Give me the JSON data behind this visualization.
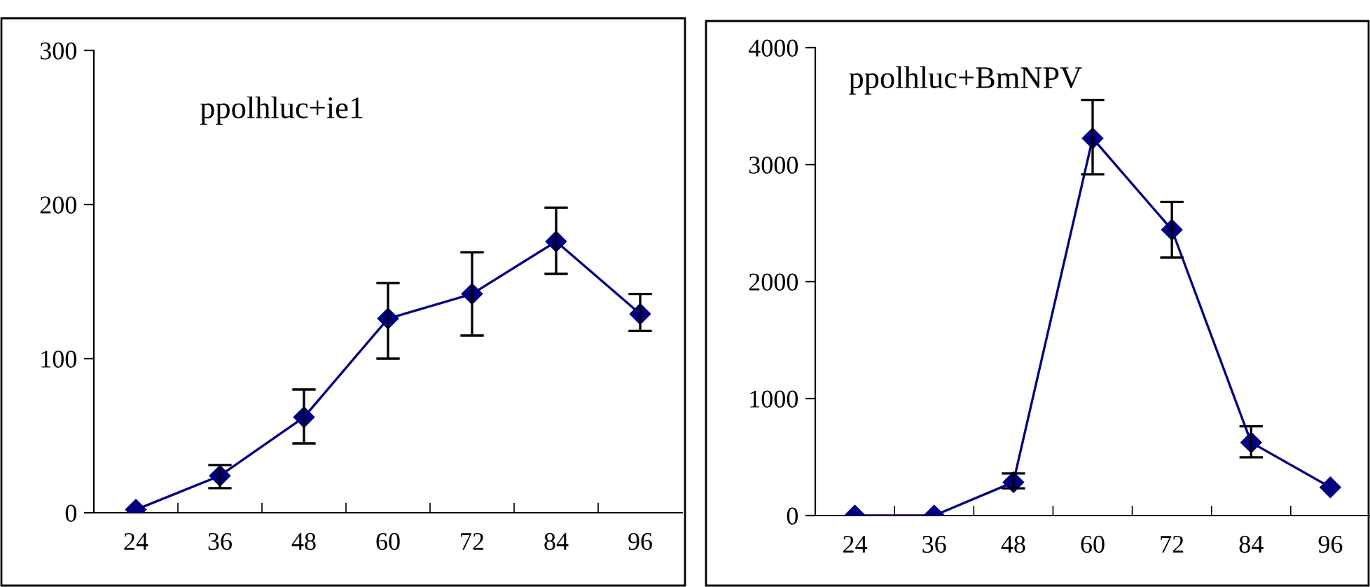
{
  "chart_data": [
    {
      "type": "line",
      "title": "ppolhluc+ie1",
      "categories": [
        "24",
        "36",
        "48",
        "60",
        "72",
        "84",
        "96"
      ],
      "ylim": [
        0,
        300
      ],
      "yticks": [
        0,
        100,
        200,
        300
      ],
      "marker": "diamond",
      "series": [
        {
          "color": "#000080",
          "values": [
            2,
            24,
            62,
            126,
            142,
            176,
            129
          ],
          "errors": [
            null,
            [
              16,
              31
            ],
            [
              45,
              80
            ],
            [
              100,
              149
            ],
            [
              115,
              169
            ],
            [
              155,
              198
            ],
            [
              118,
              142
            ]
          ]
        }
      ]
    },
    {
      "type": "line",
      "title": "ppolhluc+BmNPV",
      "categories": [
        "24",
        "36",
        "48",
        "60",
        "72",
        "84",
        "96"
      ],
      "ylim": [
        0,
        4000
      ],
      "yticks": [
        0,
        1000,
        2000,
        3000,
        4000
      ],
      "marker": "diamond",
      "series": [
        {
          "color": "#000080",
          "values": [
            0,
            0,
            285,
            3225,
            2443,
            625,
            241
          ],
          "errors": [
            null,
            null,
            [
              233,
              360
            ],
            [
              2917,
              3553
            ],
            [
              2205,
              2680
            ],
            [
              498,
              763
            ],
            null
          ]
        }
      ]
    }
  ]
}
